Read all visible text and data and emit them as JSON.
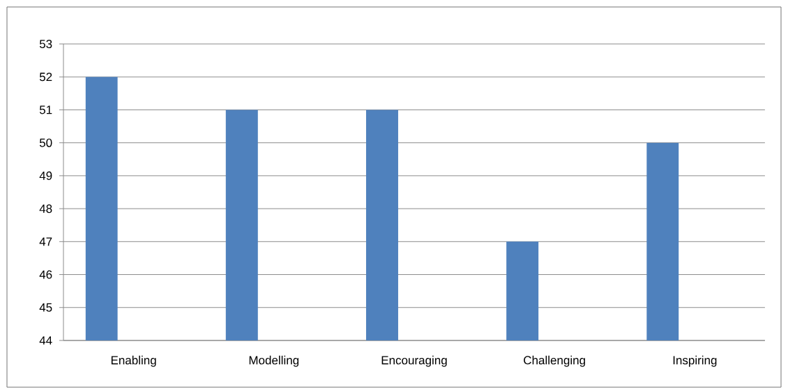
{
  "chart_data": {
    "type": "bar",
    "categories": [
      "Enabling",
      "Modelling",
      "Encouraging",
      "Challenging",
      "Inspiring"
    ],
    "values": [
      52,
      51,
      51,
      47,
      50
    ],
    "color": "#4f81bd",
    "ylim": [
      44,
      53
    ],
    "yticks": [
      44,
      45,
      46,
      47,
      48,
      49,
      50,
      51,
      52,
      53
    ],
    "grid": "y"
  }
}
